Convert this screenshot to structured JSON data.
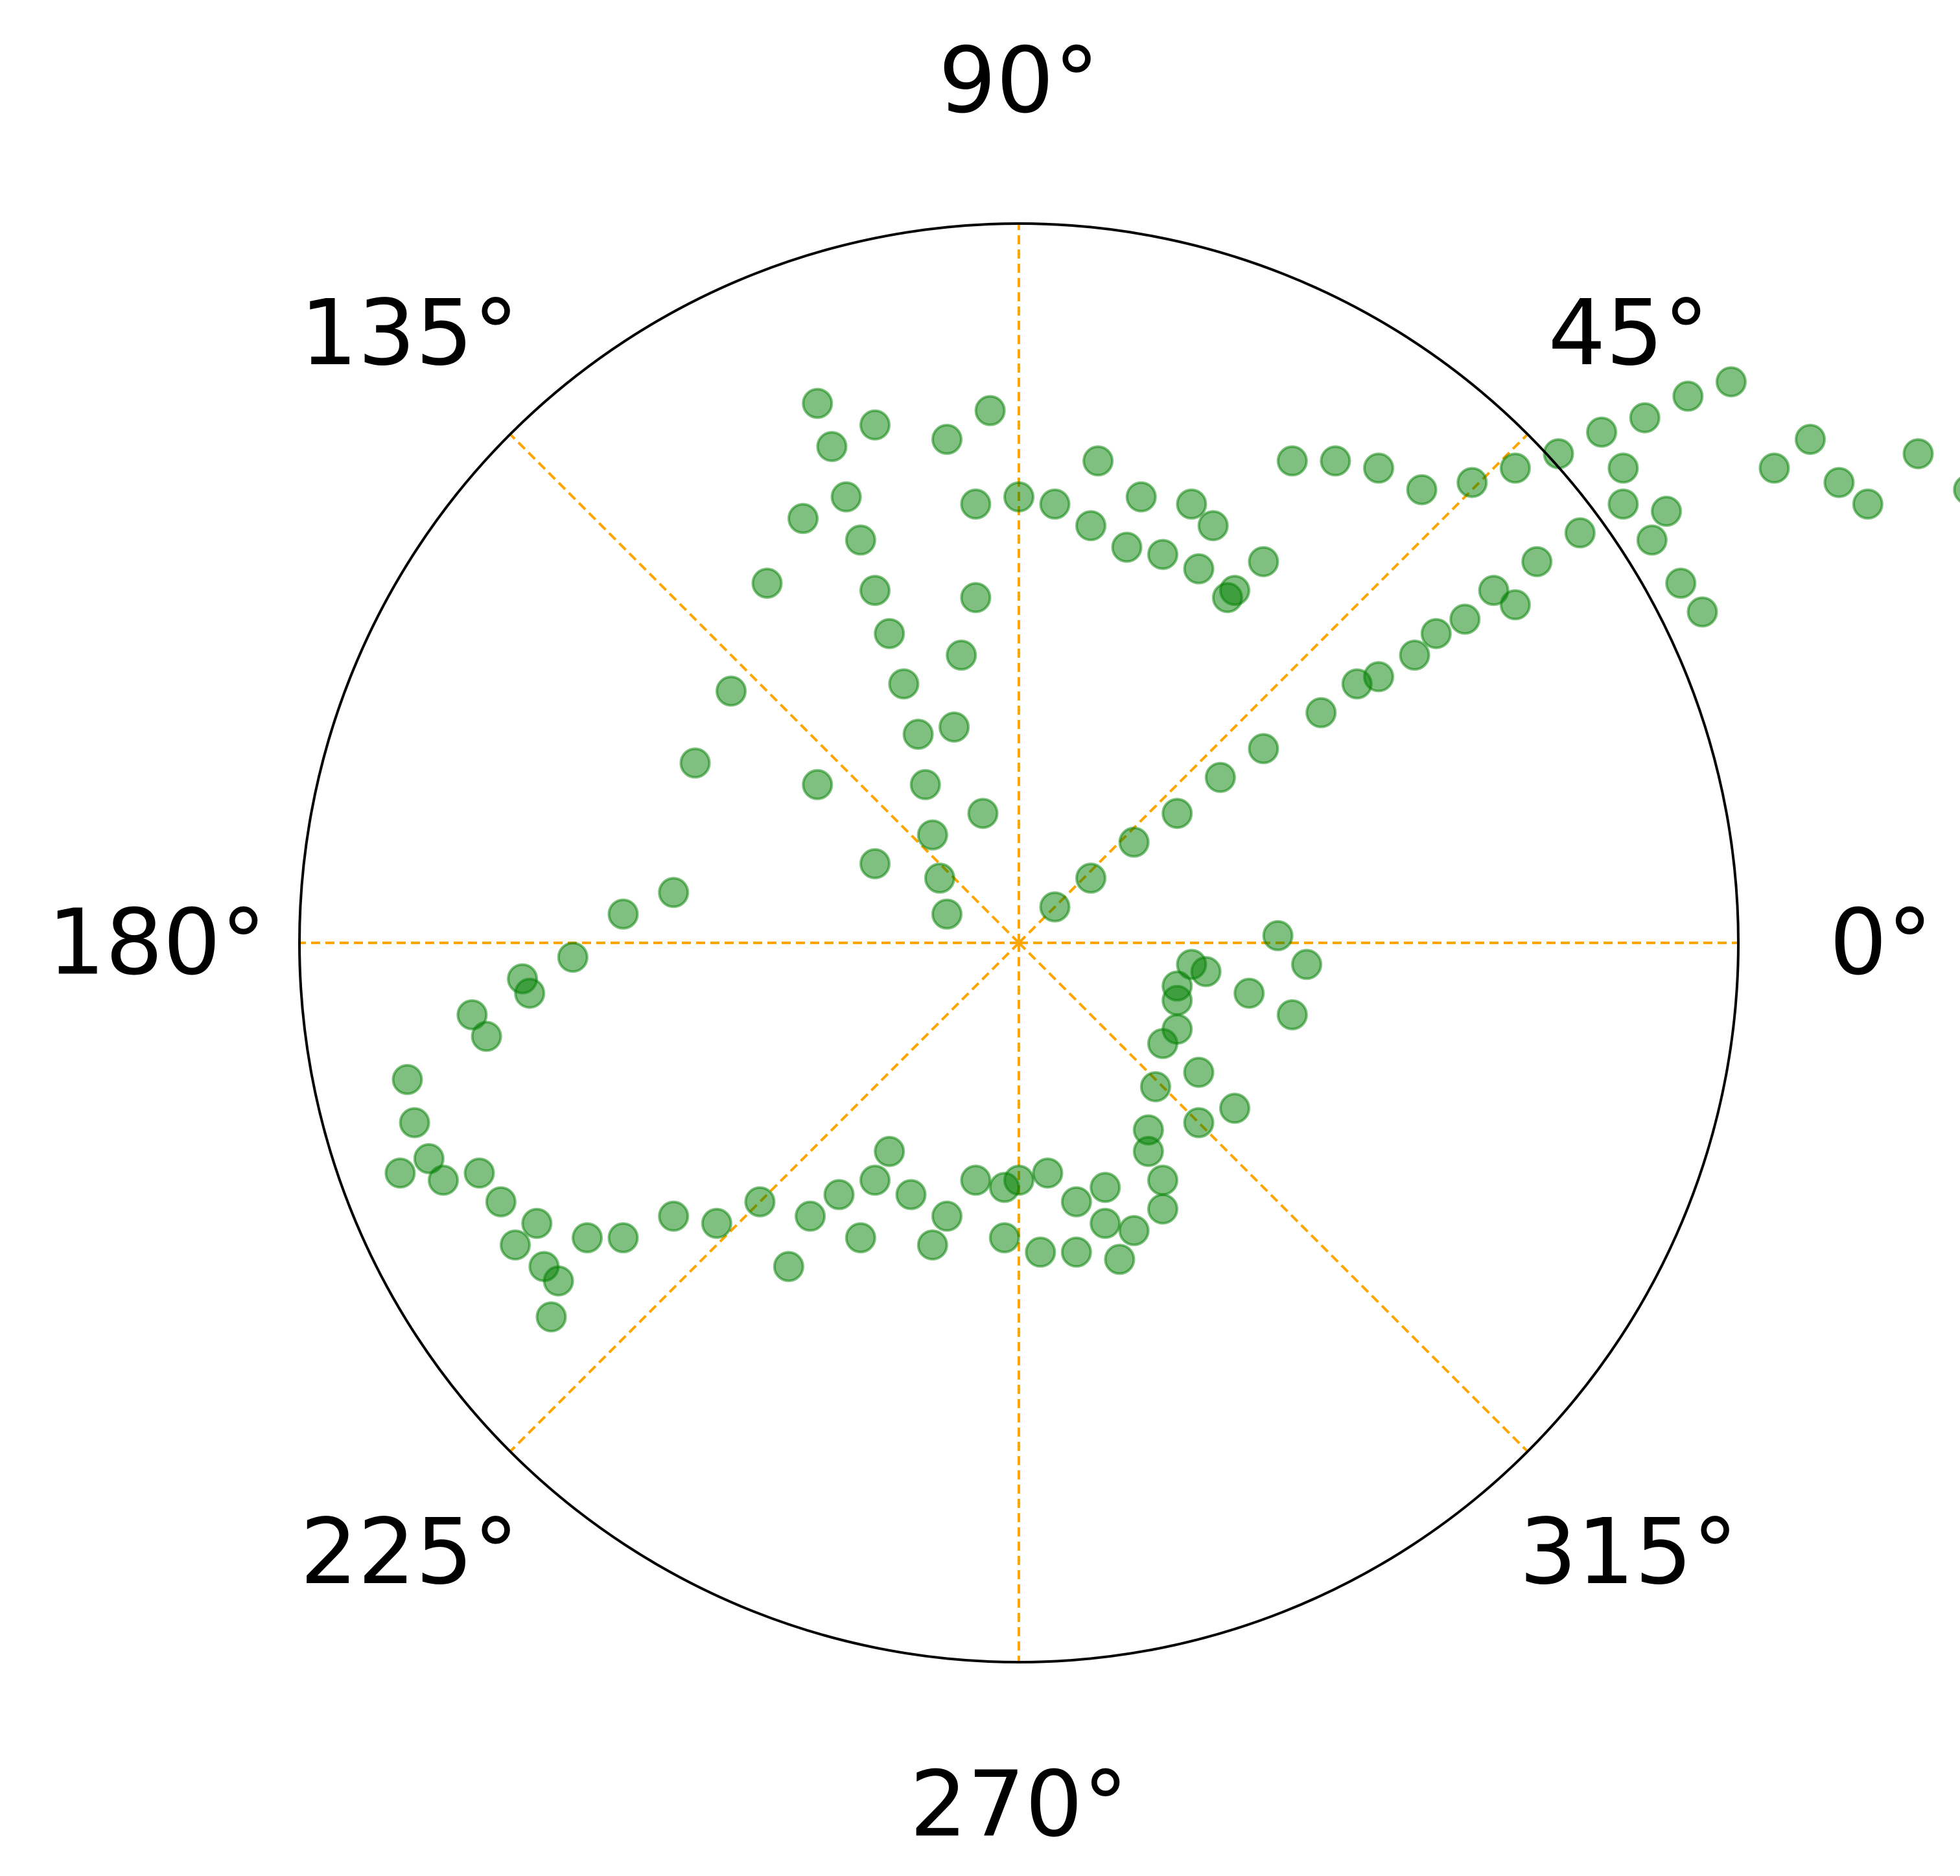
{
  "chart_data": {
    "type": "scatter",
    "projection": "polar",
    "title": "",
    "theta_unit": "degrees",
    "theta_tick_labels": [
      "0°",
      "45°",
      "90°",
      "135°",
      "180°",
      "225°",
      "270°",
      "315°"
    ],
    "theta_ticks": [
      0,
      45,
      90,
      135,
      180,
      225,
      270,
      315
    ],
    "radial_tick_labels": [],
    "rlim": [
      0,
      1
    ],
    "grid": true,
    "grid_style": "dashed",
    "legend": "none",
    "colors": {
      "marker": "#008000",
      "grid": "#FFA500",
      "frame": "#000000",
      "text": "#000000"
    },
    "marker_alpha": 0.5,
    "points": [
      [
        0.05,
        0.05
      ],
      [
        0.1,
        0.09
      ],
      [
        0.16,
        0.14
      ],
      [
        0.22,
        0.18
      ],
      [
        0.28,
        0.23
      ],
      [
        0.34,
        0.27
      ],
      [
        0.42,
        0.32
      ],
      [
        0.5,
        0.37
      ],
      [
        0.58,
        0.43
      ],
      [
        0.66,
        0.49
      ],
      [
        0.72,
        0.53
      ],
      [
        0.78,
        0.57
      ],
      [
        0.84,
        0.61
      ],
      [
        0.69,
        0.47
      ],
      [
        0.55,
        0.4
      ],
      [
        0.47,
        0.36
      ],
      [
        0.62,
        0.45
      ],
      [
        0.38,
        0.67
      ],
      [
        0.44,
        0.67
      ],
      [
        0.5,
        0.66
      ],
      [
        0.56,
        0.63
      ],
      [
        0.63,
        0.64
      ],
      [
        0.69,
        0.66
      ],
      [
        0.75,
        0.68
      ],
      [
        0.81,
        0.71
      ],
      [
        0.87,
        0.73
      ],
      [
        0.93,
        0.76
      ],
      [
        0.99,
        0.78
      ],
      [
        0.88,
        0.56
      ],
      [
        0.92,
        0.5
      ],
      [
        0.95,
        0.46
      ],
      [
        0.9,
        0.6
      ],
      [
        0.84,
        0.66
      ],
      [
        1.05,
        0.66
      ],
      [
        1.1,
        0.7
      ],
      [
        1.14,
        0.64
      ],
      [
        1.18,
        0.61
      ],
      [
        1.25,
        0.68
      ],
      [
        1.32,
        0.63
      ],
      [
        0.0,
        0.62
      ],
      [
        0.05,
        0.61
      ],
      [
        0.1,
        0.58
      ],
      [
        0.15,
        0.55
      ],
      [
        0.2,
        0.54
      ],
      [
        0.25,
        0.52
      ],
      [
        0.3,
        0.49
      ],
      [
        0.34,
        0.53
      ],
      [
        0.24,
        0.61
      ],
      [
        0.17,
        0.62
      ],
      [
        0.11,
        0.67
      ],
      [
        0.27,
        0.58
      ],
      [
        0.29,
        0.48
      ],
      [
        -0.28,
        0.75
      ],
      [
        -0.26,
        0.69
      ],
      [
        -0.24,
        0.62
      ],
      [
        -0.22,
        0.56
      ],
      [
        -0.2,
        0.49
      ],
      [
        -0.18,
        0.43
      ],
      [
        -0.16,
        0.36
      ],
      [
        -0.14,
        0.29
      ],
      [
        -0.13,
        0.22
      ],
      [
        -0.12,
        0.15
      ],
      [
        -0.11,
        0.09
      ],
      [
        -0.1,
        0.04
      ],
      [
        -0.2,
        0.72
      ],
      [
        -0.1,
        0.7
      ],
      [
        -0.3,
        0.59
      ],
      [
        -0.35,
        0.5
      ],
      [
        -0.4,
        0.35
      ],
      [
        -0.45,
        0.25
      ],
      [
        -0.06,
        0.48
      ],
      [
        -0.08,
        0.4
      ],
      [
        -0.09,
        0.3
      ],
      [
        -0.05,
        0.18
      ],
      [
        -0.2,
        0.11
      ],
      [
        -0.28,
        0.22
      ],
      [
        -0.06,
        0.61
      ],
      [
        -0.04,
        0.74
      ],
      [
        -0.55,
        0.04
      ],
      [
        -0.62,
        -0.02
      ],
      [
        -0.68,
        -0.07
      ],
      [
        -0.74,
        -0.13
      ],
      [
        -0.76,
        -0.1
      ],
      [
        -0.69,
        -0.05
      ],
      [
        -0.48,
        0.07
      ],
      [
        -0.85,
        -0.19
      ],
      [
        -0.84,
        -0.25
      ],
      [
        -0.82,
        -0.3
      ],
      [
        -0.86,
        -0.32
      ],
      [
        -0.8,
        -0.33
      ],
      [
        -0.75,
        -0.32
      ],
      [
        -0.72,
        -0.36
      ],
      [
        -0.67,
        -0.39
      ],
      [
        -0.66,
        -0.45
      ],
      [
        -0.65,
        -0.52
      ],
      [
        -0.64,
        -0.47
      ],
      [
        -0.7,
        -0.42
      ],
      [
        -0.6,
        -0.41
      ],
      [
        -0.55,
        -0.41
      ],
      [
        -0.48,
        -0.38
      ],
      [
        -0.42,
        -0.39
      ],
      [
        -0.36,
        -0.36
      ],
      [
        -0.32,
        -0.45
      ],
      [
        -0.29,
        -0.38
      ],
      [
        -0.25,
        -0.35
      ],
      [
        -0.2,
        -0.33
      ],
      [
        -0.15,
        -0.35
      ],
      [
        -0.1,
        -0.38
      ],
      [
        -0.06,
        -0.33
      ],
      [
        -0.02,
        -0.34
      ],
      [
        0.0,
        -0.33
      ],
      [
        0.04,
        -0.32
      ],
      [
        0.08,
        -0.36
      ],
      [
        0.12,
        -0.39
      ],
      [
        0.16,
        -0.4
      ],
      [
        0.2,
        -0.37
      ],
      [
        -0.22,
        -0.41
      ],
      [
        -0.12,
        -0.42
      ],
      [
        -0.02,
        -0.41
      ],
      [
        0.08,
        -0.43
      ],
      [
        0.14,
        -0.44
      ],
      [
        0.03,
        -0.43
      ],
      [
        -0.18,
        -0.29
      ],
      [
        0.12,
        -0.34
      ],
      [
        0.18,
        -0.29
      ],
      [
        0.18,
        -0.26
      ],
      [
        0.19,
        -0.2
      ],
      [
        0.2,
        -0.14
      ],
      [
        0.22,
        -0.08
      ],
      [
        0.24,
        -0.03
      ],
      [
        0.26,
        -0.04
      ],
      [
        0.22,
        -0.12
      ],
      [
        0.25,
        -0.18
      ],
      [
        0.3,
        -0.23
      ],
      [
        0.32,
        -0.07
      ],
      [
        0.36,
        0.01
      ],
      [
        0.4,
        -0.03
      ],
      [
        0.38,
        -0.1
      ],
      [
        0.2,
        -0.33
      ],
      [
        0.25,
        -0.25
      ],
      [
        0.22,
        -0.06
      ]
    ]
  }
}
